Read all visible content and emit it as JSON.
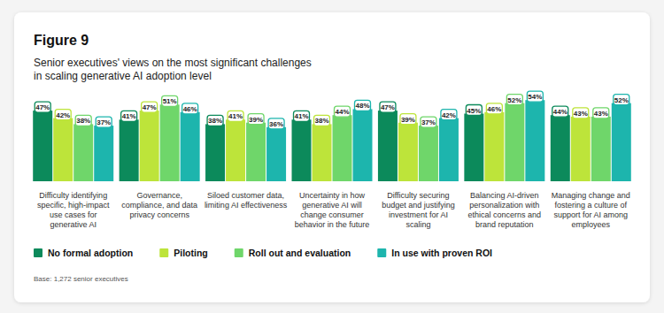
{
  "chart_data": {
    "type": "bar",
    "title": "Figure 9",
    "subtitle": [
      "Senior executives' views on the most significant challenges",
      "in scaling generative AI adoption level"
    ],
    "categories": [
      "Difficulty identifying specific, high-impact use cases for generative AI",
      "Governance, compliance, and data privacy concerns",
      "Siloed customer data, limiting AI effectiveness",
      "Uncertainty in how generative AI will change consumer behavior in the future",
      "Difficulty securing budget and justifying investment for AI scaling",
      "Balancing AI-driven personalization with ethical concerns and brand reputation",
      "Managing change and fostering a culture of support for AI among employees"
    ],
    "series": [
      {
        "name": "No formal adoption",
        "color": "#0c8a5b",
        "values": [
          47,
          41,
          38,
          41,
          47,
          45,
          44
        ],
        "value_labels": [
          "47%",
          "41%",
          "38%",
          "41%",
          "47%",
          "45%",
          "44%"
        ]
      },
      {
        "name": "Piloting",
        "color": "#bde43a",
        "values": [
          42,
          47,
          41,
          38,
          39,
          46,
          43
        ],
        "value_labels": [
          "42%",
          "47%",
          "41%",
          "38%",
          "39%",
          "46%",
          "43%"
        ]
      },
      {
        "name": "Roll out and evaluation",
        "color": "#6fd66a",
        "values": [
          38,
          51,
          39,
          44,
          37,
          52,
          43
        ],
        "value_labels": [
          "38%",
          "51%",
          "39%",
          "44%",
          "37%",
          "52%",
          "43%"
        ]
      },
      {
        "name": "In use with proven ROI",
        "color": "#1db5ad",
        "values": [
          37,
          46,
          36,
          48,
          42,
          54,
          52
        ],
        "value_labels": [
          "37%",
          "46%",
          "36%",
          "48%",
          "42%",
          "54%",
          "52%"
        ]
      }
    ],
    "ylim": [
      0,
      60
    ],
    "tick_labels": false,
    "grid": false,
    "data_labels": true,
    "legend": "bottom",
    "footnote": "Base: 1,272 senior executives"
  }
}
